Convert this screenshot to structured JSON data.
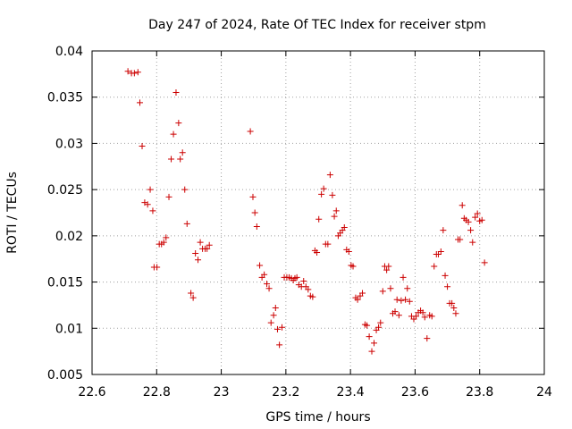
{
  "chart_data": {
    "type": "scatter",
    "title": "Day 247 of 2024, Rate Of TEC Index for receiver stpm",
    "xlabel": "GPS time / hours",
    "ylabel": "ROTI / TECUs",
    "xlim": [
      22.6,
      24.0
    ],
    "ylim": [
      0.005,
      0.04
    ],
    "xticks": [
      22.6,
      22.8,
      23.0,
      23.2,
      23.4,
      23.6,
      23.8,
      24.0
    ],
    "xtick_labels": [
      "22.6",
      "22.8",
      "23",
      "23.2",
      "23.4",
      "23.6",
      "23.8",
      "24"
    ],
    "yticks": [
      0.005,
      0.01,
      0.015,
      0.02,
      0.025,
      0.03,
      0.035,
      0.04
    ],
    "ytick_labels": [
      "0.005",
      "0.01",
      "0.015",
      "0.02",
      "0.025",
      "0.03",
      "0.035",
      "0.04"
    ],
    "grid": true,
    "marker": "+",
    "color": "#cc0000",
    "series": [
      {
        "name": "ROTI",
        "points": [
          [
            22.711,
            0.0378
          ],
          [
            22.722,
            0.0376
          ],
          [
            22.731,
            0.0376
          ],
          [
            22.742,
            0.0377
          ],
          [
            22.748,
            0.0344
          ],
          [
            22.755,
            0.0297
          ],
          [
            22.763,
            0.0236
          ],
          [
            22.772,
            0.0234
          ],
          [
            22.78,
            0.025
          ],
          [
            22.788,
            0.0227
          ],
          [
            22.792,
            0.0166
          ],
          [
            22.801,
            0.0166
          ],
          [
            22.808,
            0.0191
          ],
          [
            22.815,
            0.0191
          ],
          [
            22.822,
            0.0193
          ],
          [
            22.829,
            0.0198
          ],
          [
            22.838,
            0.0242
          ],
          [
            22.845,
            0.0283
          ],
          [
            22.852,
            0.031
          ],
          [
            22.86,
            0.0355
          ],
          [
            22.868,
            0.0322
          ],
          [
            22.873,
            0.0283
          ],
          [
            22.88,
            0.029
          ],
          [
            22.887,
            0.025
          ],
          [
            22.894,
            0.0213
          ],
          [
            22.906,
            0.0138
          ],
          [
            22.913,
            0.0133
          ],
          [
            22.92,
            0.0181
          ],
          [
            22.928,
            0.0174
          ],
          [
            22.935,
            0.0193
          ],
          [
            22.942,
            0.0186
          ],
          [
            22.95,
            0.0186
          ],
          [
            22.956,
            0.0186
          ],
          [
            22.963,
            0.019
          ],
          [
            23.09,
            0.0313
          ],
          [
            23.098,
            0.0242
          ],
          [
            23.104,
            0.0225
          ],
          [
            23.11,
            0.021
          ],
          [
            23.119,
            0.0168
          ],
          [
            23.126,
            0.0155
          ],
          [
            23.133,
            0.0158
          ],
          [
            23.141,
            0.0148
          ],
          [
            23.148,
            0.0143
          ],
          [
            23.154,
            0.0106
          ],
          [
            23.162,
            0.0114
          ],
          [
            23.168,
            0.0122
          ],
          [
            23.174,
            0.0099
          ],
          [
            23.18,
            0.0082
          ],
          [
            23.188,
            0.0101
          ],
          [
            23.195,
            0.0155
          ],
          [
            23.203,
            0.0155
          ],
          [
            23.21,
            0.0155
          ],
          [
            23.217,
            0.0154
          ],
          [
            23.223,
            0.0152
          ],
          [
            23.228,
            0.0154
          ],
          [
            23.234,
            0.0155
          ],
          [
            23.24,
            0.0147
          ],
          [
            23.248,
            0.0145
          ],
          [
            23.255,
            0.0151
          ],
          [
            23.262,
            0.0145
          ],
          [
            23.269,
            0.0142
          ],
          [
            23.276,
            0.0135
          ],
          [
            23.283,
            0.0134
          ],
          [
            23.29,
            0.0184
          ],
          [
            23.296,
            0.0182
          ],
          [
            23.302,
            0.0218
          ],
          [
            23.31,
            0.0245
          ],
          [
            23.317,
            0.0251
          ],
          [
            23.323,
            0.0191
          ],
          [
            23.33,
            0.0191
          ],
          [
            23.337,
            0.0266
          ],
          [
            23.344,
            0.0244
          ],
          [
            23.35,
            0.0221
          ],
          [
            23.356,
            0.0227
          ],
          [
            23.362,
            0.02
          ],
          [
            23.368,
            0.0203
          ],
          [
            23.375,
            0.0206
          ],
          [
            23.381,
            0.0209
          ],
          [
            23.388,
            0.0185
          ],
          [
            23.395,
            0.0183
          ],
          [
            23.402,
            0.0168
          ],
          [
            23.408,
            0.0167
          ],
          [
            23.416,
            0.0133
          ],
          [
            23.422,
            0.0131
          ],
          [
            23.43,
            0.0135
          ],
          [
            23.437,
            0.0138
          ],
          [
            23.445,
            0.0104
          ],
          [
            23.451,
            0.0103
          ],
          [
            23.458,
            0.0091
          ],
          [
            23.466,
            0.0075
          ],
          [
            23.473,
            0.0084
          ],
          [
            23.48,
            0.0098
          ],
          [
            23.487,
            0.0101
          ],
          [
            23.493,
            0.0106
          ],
          [
            23.5,
            0.014
          ],
          [
            23.506,
            0.0167
          ],
          [
            23.512,
            0.0163
          ],
          [
            23.518,
            0.0167
          ],
          [
            23.524,
            0.0143
          ],
          [
            23.531,
            0.0116
          ],
          [
            23.538,
            0.0118
          ],
          [
            23.544,
            0.0131
          ],
          [
            23.55,
            0.0114
          ],
          [
            23.557,
            0.013
          ],
          [
            23.563,
            0.0155
          ],
          [
            23.57,
            0.0131
          ],
          [
            23.576,
            0.0143
          ],
          [
            23.583,
            0.0129
          ],
          [
            23.589,
            0.0113
          ],
          [
            23.596,
            0.011
          ],
          [
            23.603,
            0.0113
          ],
          [
            23.61,
            0.0117
          ],
          [
            23.617,
            0.0119
          ],
          [
            23.624,
            0.0117
          ],
          [
            23.63,
            0.0112
          ],
          [
            23.637,
            0.0089
          ],
          [
            23.645,
            0.0114
          ],
          [
            23.652,
            0.0113
          ],
          [
            23.659,
            0.0167
          ],
          [
            23.666,
            0.018
          ],
          [
            23.672,
            0.018
          ],
          [
            23.68,
            0.0183
          ],
          [
            23.687,
            0.0206
          ],
          [
            23.693,
            0.0157
          ],
          [
            23.7,
            0.0145
          ],
          [
            23.707,
            0.0127
          ],
          [
            23.714,
            0.0127
          ],
          [
            23.72,
            0.0122
          ],
          [
            23.726,
            0.0116
          ],
          [
            23.733,
            0.0196
          ],
          [
            23.739,
            0.0196
          ],
          [
            23.746,
            0.0233
          ],
          [
            23.752,
            0.0219
          ],
          [
            23.758,
            0.0217
          ],
          [
            23.765,
            0.0215
          ],
          [
            23.772,
            0.0206
          ],
          [
            23.778,
            0.0193
          ],
          [
            23.786,
            0.022
          ],
          [
            23.793,
            0.0224
          ],
          [
            23.8,
            0.0216
          ],
          [
            23.807,
            0.0217
          ],
          [
            23.815,
            0.0171
          ]
        ]
      }
    ]
  }
}
